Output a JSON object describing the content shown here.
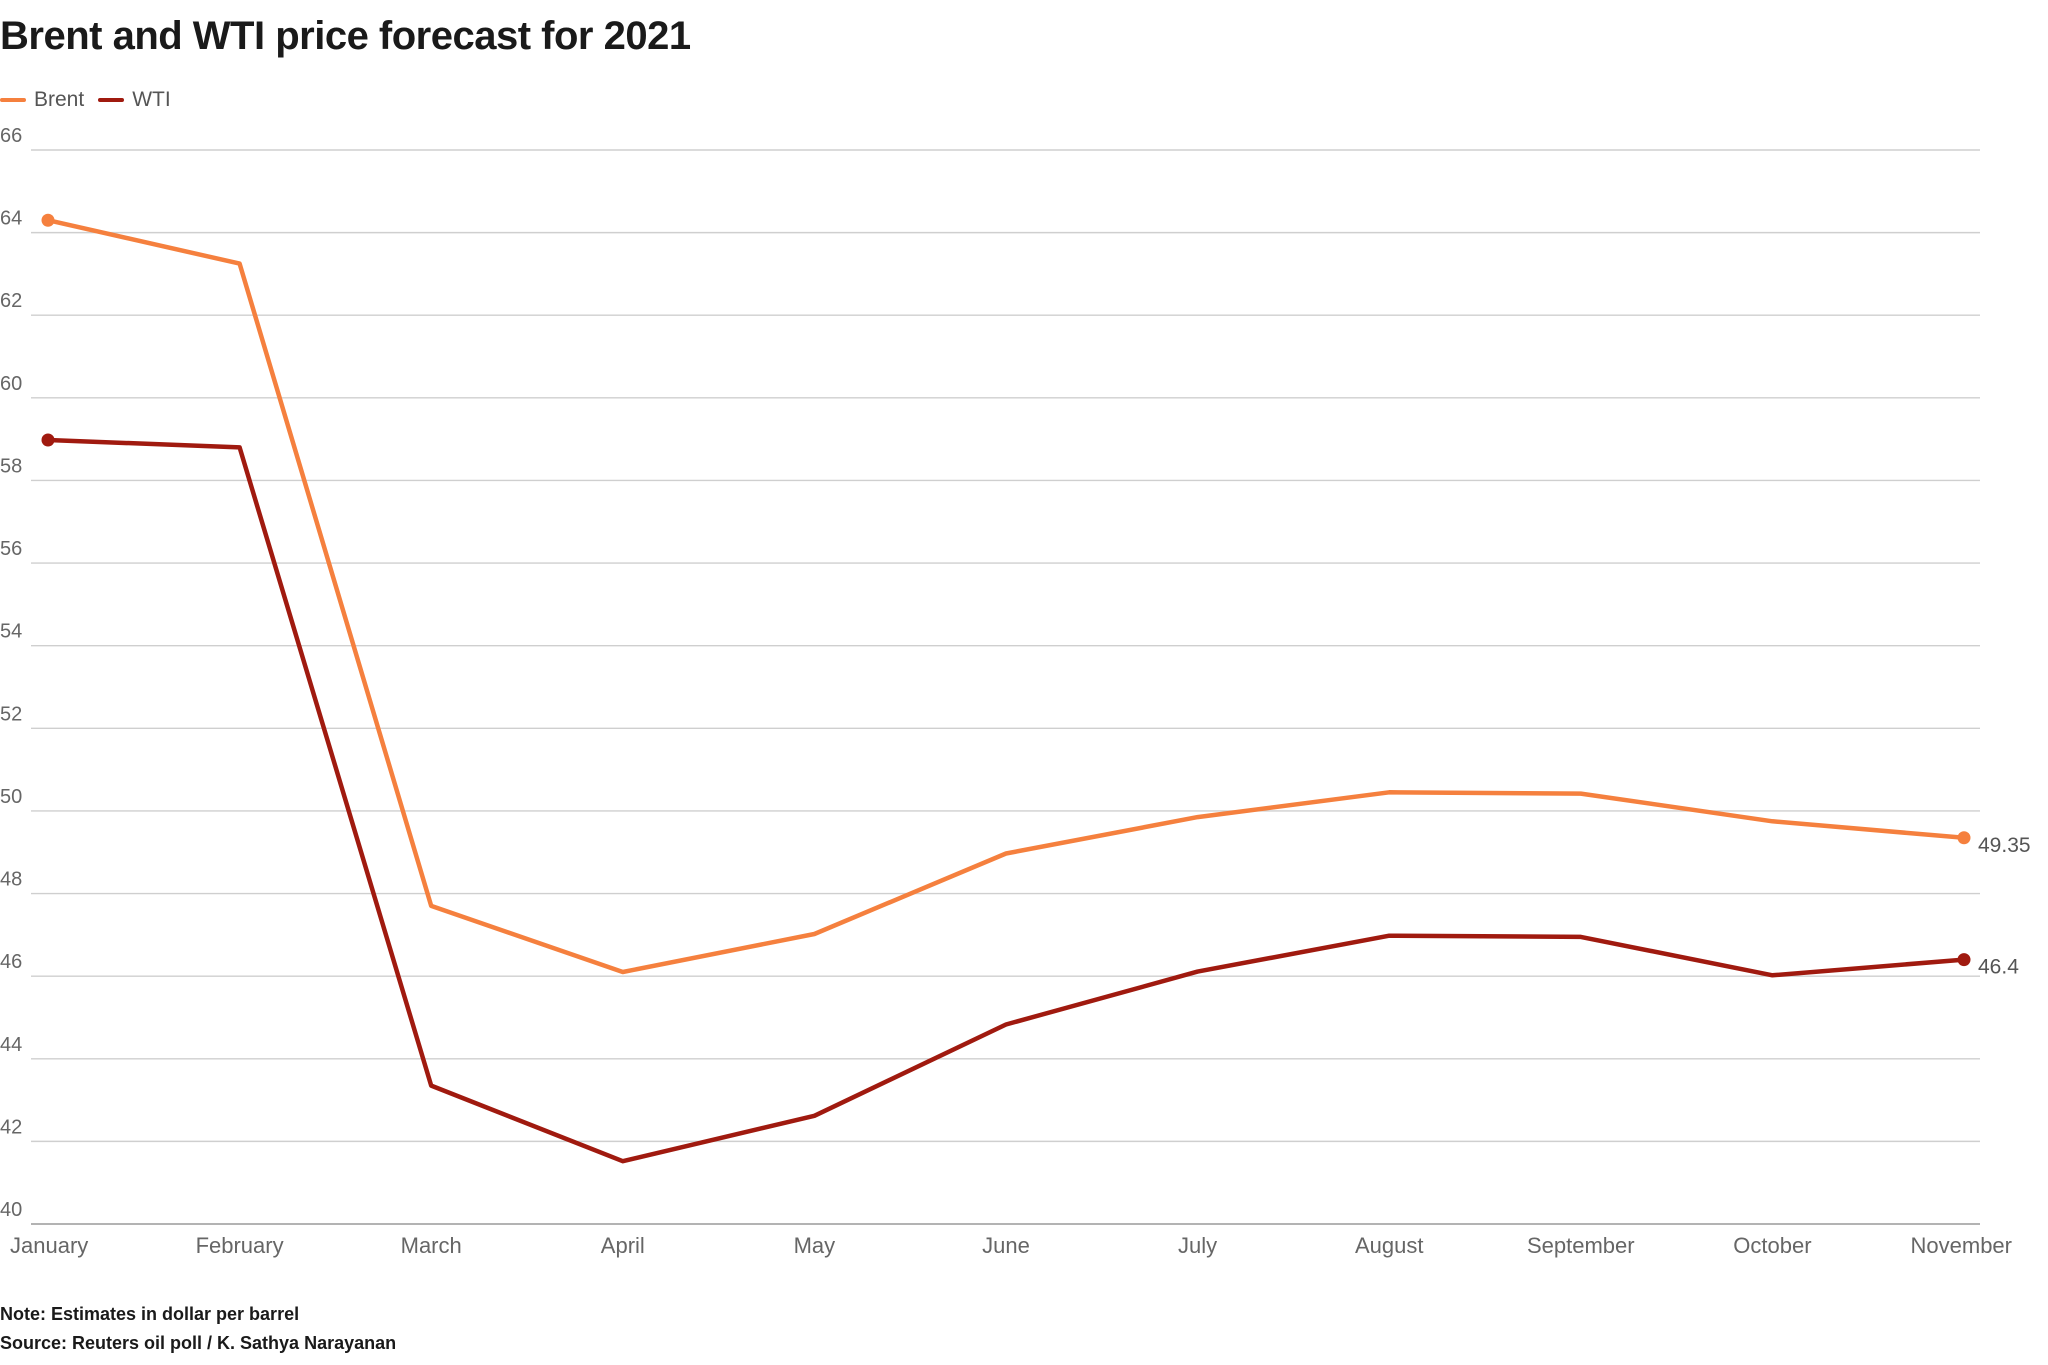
{
  "title": "Brent and WTI price forecast for 2021",
  "legend": [
    {
      "label": "Brent",
      "color": "#f5803e"
    },
    {
      "label": "WTI",
      "color": "#a01a0f"
    }
  ],
  "note": "Note: Estimates in dollar per barrel",
  "source": "Source: Reuters oil poll / K. Sathya Narayanan",
  "chart_data": {
    "type": "line",
    "title": "Brent and WTI price forecast for 2021",
    "xlabel": "",
    "ylabel": "",
    "categories": [
      "January",
      "February",
      "March",
      "April",
      "May",
      "June",
      "July",
      "August",
      "September",
      "October",
      "November"
    ],
    "series": [
      {
        "name": "Brent",
        "color": "#f5803e",
        "values": [
          64.3,
          63.25,
          47.7,
          46.1,
          47.02,
          48.97,
          49.85,
          50.45,
          50.42,
          49.75,
          49.35
        ],
        "end_label": "49.35"
      },
      {
        "name": "WTI",
        "color": "#a01a0f",
        "values": [
          58.98,
          58.8,
          43.35,
          41.52,
          42.62,
          44.83,
          46.11,
          46.98,
          46.95,
          46.02,
          46.4
        ],
        "end_label": "46.4"
      }
    ],
    "ylim": [
      40,
      66
    ],
    "yticks": [
      "40",
      "42",
      "44",
      "46",
      "48",
      "50",
      "52",
      "54",
      "56",
      "58",
      "60",
      "62",
      "64",
      "66"
    ],
    "grid": true,
    "legend_position": "top-left"
  }
}
